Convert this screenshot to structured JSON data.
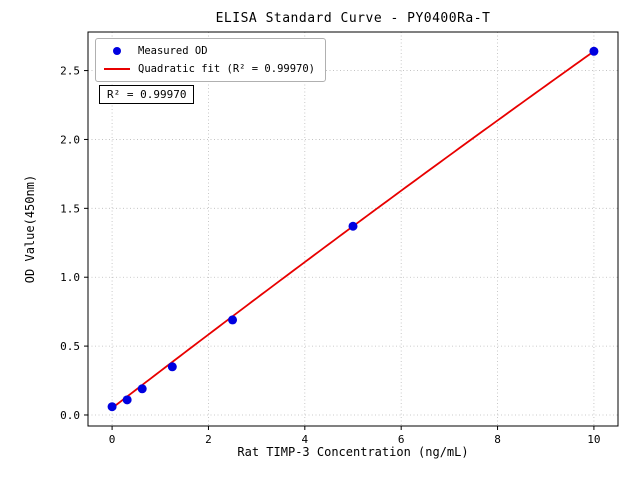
{
  "chart_data": {
    "type": "scatter",
    "title": "ELISA Standard Curve - PY0400Ra-T",
    "xlabel": "Rat TIMP-3 Concentration (ng/mL)",
    "ylabel": "OD Value(450nm)",
    "xlim": [
      -0.5,
      10.5
    ],
    "ylim": [
      -0.08,
      2.78
    ],
    "xticks": [
      0,
      2,
      4,
      6,
      8,
      10
    ],
    "xtick_labels": [
      "0",
      "2",
      "4",
      "6",
      "8",
      "10"
    ],
    "yticks": [
      0,
      0.5,
      1,
      1.5,
      2,
      2.5
    ],
    "ytick_labels": [
      "0.0",
      "0.5",
      "1.0",
      "1.5",
      "2.0",
      "2.5"
    ],
    "grid": true,
    "grid_style": "dotted",
    "points": [
      {
        "x": 0,
        "y": 0.06
      },
      {
        "x": 0.3125,
        "y": 0.11
      },
      {
        "x": 0.625,
        "y": 0.19
      },
      {
        "x": 1.25,
        "y": 0.35
      },
      {
        "x": 2.5,
        "y": 0.69
      },
      {
        "x": 5,
        "y": 1.37
      },
      {
        "x": 10,
        "y": 2.64
      }
    ],
    "fit": {
      "type": "quadratic",
      "r_squared": "0.99970",
      "coefficients": {
        "a": 0.05,
        "b": 0.269,
        "c": -0.001
      },
      "x_range": [
        0,
        10
      ]
    },
    "legend": {
      "position": "upper-left",
      "items": [
        {
          "label": "Measured OD",
          "marker": "dot",
          "color": "#0000e0"
        },
        {
          "label": "Quadratic fit (R² = 0.99970)",
          "marker": "line",
          "color": "#e80000"
        }
      ]
    },
    "annotation": "R² = 0.99970",
    "colors": {
      "points": "#0000e0",
      "fit_line": "#e80000",
      "grid": "#bbbbbb",
      "frame": "#000000",
      "background": "#ffffff"
    }
  }
}
